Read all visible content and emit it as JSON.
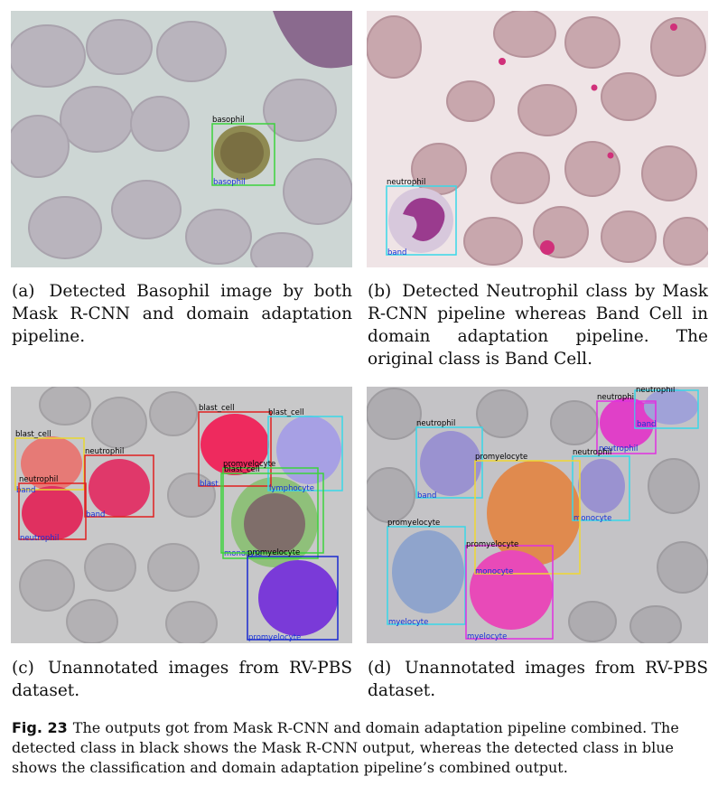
{
  "panels": {
    "a": {
      "label": "(a)",
      "caption": "Detected Basophil image by both Mask R-CNN and domain adaptation pipeline.",
      "detections": [
        {
          "black": "basophil",
          "blue": "basophil",
          "box_color": "#3cd23c"
        }
      ]
    },
    "b": {
      "label": "(b)",
      "caption": "Detected Neutrophil class by Mask R-CNN pipeline whereas Band Cell in domain adaptation pipeline. The original class is Band Cell.",
      "detections": [
        {
          "black": "neutrophil",
          "blue": "band",
          "box_color": "#38d8e8"
        }
      ]
    },
    "c": {
      "label": "(c)",
      "caption": "Unannotated images from RV-PBS dataset.",
      "detections": [
        {
          "black": "blast_cell",
          "blue": "band",
          "box_color": "#e8d830"
        },
        {
          "black": "neutrophil",
          "blue": "neutrophil",
          "box_color": "#e02020"
        },
        {
          "black": "neutrophil",
          "blue": "band",
          "box_color": "#e02020"
        },
        {
          "black": "blast_cell",
          "blue": "blast",
          "box_color": "#e02020"
        },
        {
          "black": "blast_cell",
          "blue": "lymphocyte",
          "box_color": "#38d8e8"
        },
        {
          "black": "promyelocyte",
          "blue": "monocyte",
          "box_color": "#3cd23c"
        },
        {
          "black": "blast_cell",
          "blue": "",
          "box_color": "#3cd23c"
        },
        {
          "black": "promyelocyte",
          "blue": "promyelocyte",
          "box_color": "#1a2ad0"
        }
      ]
    },
    "d": {
      "label": "(d)",
      "caption": "Unannotated images from RV-PBS dataset.",
      "detections": [
        {
          "black": "neutrophil",
          "blue": "",
          "box_color": "#38d8e8"
        },
        {
          "black": "neutrophil",
          "blue": "neutrophil",
          "box_color": "#e030e0"
        },
        {
          "black": "",
          "blue": "band",
          "box_color": "#e030e0"
        },
        {
          "black": "neutrophil",
          "blue": "band",
          "box_color": "#38d8e8"
        },
        {
          "black": "promyelocyte",
          "blue": "",
          "box_color": "#f0d830"
        },
        {
          "black": "neutrophil",
          "blue": "monocyte",
          "box_color": "#38d8e8"
        },
        {
          "black": "promyelocyte",
          "blue": "myelocyte",
          "box_color": "#38d8e8"
        },
        {
          "black": "promyelocyte",
          "blue": "monocyte",
          "box_color": "#e030e0"
        },
        {
          "black": "",
          "blue": "myelocyte",
          "box_color": "#e030e0"
        }
      ]
    }
  },
  "figure_caption": {
    "label": "Fig. 23",
    "text": "The outputs got from Mask R-CNN and domain adaptation pipeline combined. The detected class in black shows the Mask R-CNN output, whereas the detected class in blue shows the classification and domain adaptation pipeline’s combined output."
  }
}
